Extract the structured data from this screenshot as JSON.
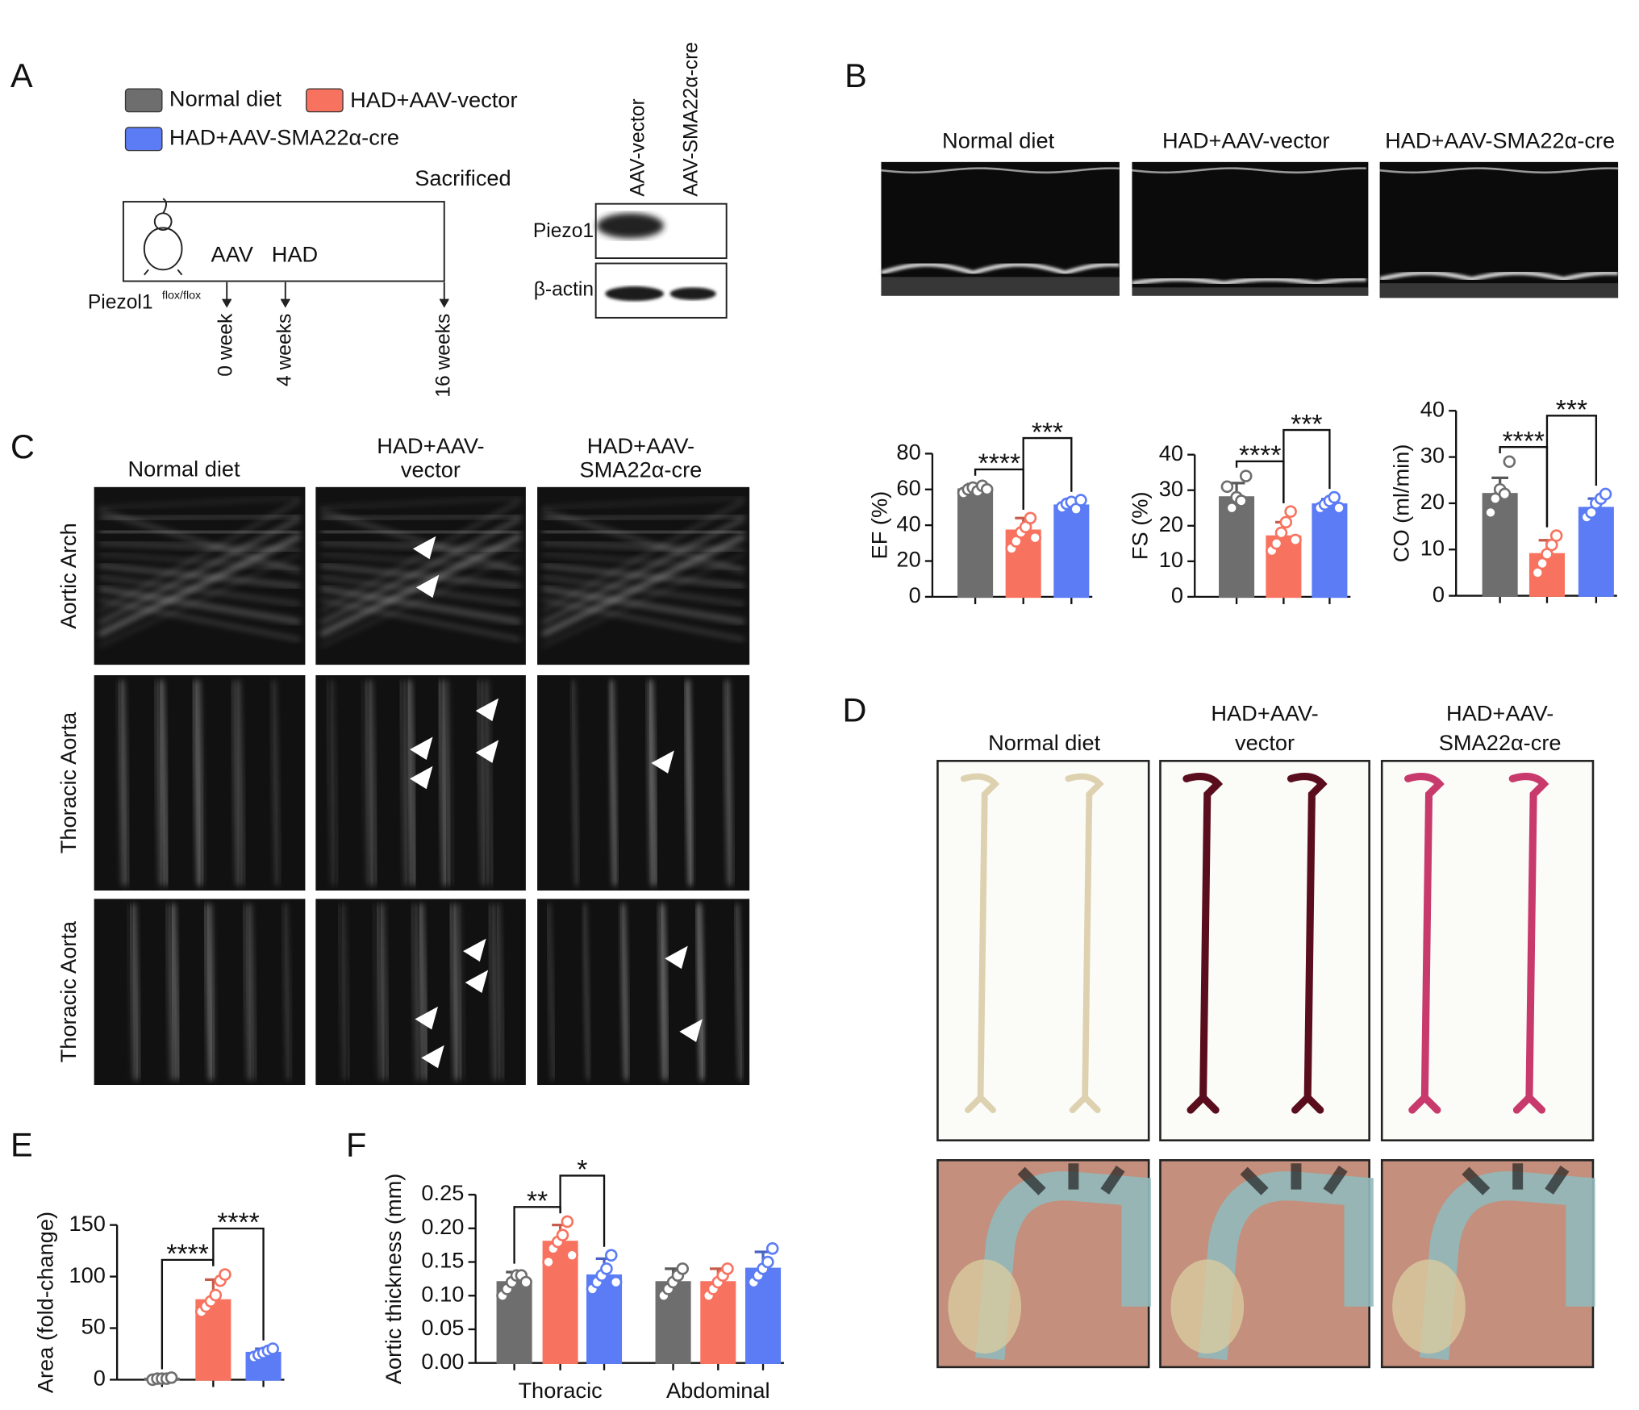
{
  "panel_labels": [
    "A",
    "B",
    "C",
    "D",
    "E",
    "F"
  ],
  "legend": {
    "names": [
      "Normal diet",
      "HAD+AAV-vector",
      "HAD+AAV-SMA22α-cre"
    ],
    "colors": [
      "#6e6e6e",
      "#f8735f",
      "#5b7cf5"
    ]
  },
  "timeline": {
    "mouse": "Piezol1",
    "mouse_superscript": "flox/flox",
    "events": [
      "AAV",
      "HAD"
    ],
    "end": "Sacrificed",
    "times": [
      "0 week",
      "4 weeks",
      "16 weeks"
    ]
  },
  "western_blot": {
    "lanes": [
      "AAV-vector",
      "AAV-SMA22α-cre"
    ],
    "proteins": [
      "Piezo1",
      "β-actin"
    ]
  },
  "echo_titles": [
    "Normal diet",
    "HAD+AAV-vector",
    "HAD+AAV-SMA22α-cre"
  ],
  "ultrasound": {
    "columns": [
      [
        "Normal diet"
      ],
      [
        "HAD+AAV-",
        "vector"
      ],
      [
        "HAD+AAV-",
        "SMA22α-cre"
      ]
    ],
    "rows": [
      "Aortic Arch",
      "Thoracic Aorta",
      "Thoracic Aorta"
    ]
  },
  "staining": {
    "columns": [
      [
        "Normal diet"
      ],
      [
        "HAD+AAV-",
        "vector"
      ],
      [
        "HAD+AAV-",
        "SMA22α-cre"
      ]
    ]
  },
  "chart_data": [
    {
      "type": "bar",
      "ylabel": "EF (%)",
      "ylim": [
        0,
        80
      ],
      "yticks": [
        0,
        20,
        40,
        60,
        80
      ],
      "annotations": [
        "****",
        "***"
      ],
      "series": [
        {
          "color": "#6e6e6e",
          "values": [
            60
          ],
          "errors": [
            3
          ],
          "points": [
            [
              58,
              60,
              61,
              59,
              62,
              60
            ]
          ]
        },
        {
          "color": "#f8735f",
          "values": [
            37
          ],
          "errors": [
            7
          ],
          "points": [
            [
              27,
              31,
              36,
              39,
              44,
              33
            ]
          ]
        },
        {
          "color": "#5b7cf5",
          "values": [
            51
          ],
          "errors": [
            3
          ],
          "points": [
            [
              50,
              52,
              53,
              49,
              54
            ]
          ]
        }
      ]
    },
    {
      "type": "bar",
      "ylabel": "FS (%)",
      "ylim": [
        0,
        40
      ],
      "yticks": [
        0,
        10,
        20,
        30,
        40
      ],
      "annotations": [
        "****",
        "***"
      ],
      "series": [
        {
          "color": "#6e6e6e",
          "values": [
            28
          ],
          "errors": [
            4
          ],
          "points": [
            [
              31,
              25,
              28,
              27,
              34
            ]
          ]
        },
        {
          "color": "#f8735f",
          "values": [
            17
          ],
          "errors": [
            4
          ],
          "points": [
            [
              13,
              15,
              18,
              21,
              24,
              16
            ]
          ]
        },
        {
          "color": "#5b7cf5",
          "values": [
            26
          ],
          "errors": [
            1.5
          ],
          "points": [
            [
              25,
              26,
              27,
              28,
              25
            ]
          ]
        }
      ]
    },
    {
      "type": "bar",
      "ylabel": "CO (ml/min)",
      "ylim": [
        0,
        40
      ],
      "yticks": [
        0,
        10,
        20,
        30,
        40
      ],
      "annotations": [
        "****",
        "***"
      ],
      "series": [
        {
          "color": "#6e6e6e",
          "values": [
            22
          ],
          "errors": [
            3.5
          ],
          "points": [
            [
              18,
              21,
              23,
              22,
              29
            ]
          ]
        },
        {
          "color": "#f8735f",
          "values": [
            9
          ],
          "errors": [
            3
          ],
          "points": [
            [
              5,
              7,
              9,
              11,
              13
            ]
          ]
        },
        {
          "color": "#5b7cf5",
          "values": [
            19
          ],
          "errors": [
            2
          ],
          "points": [
            [
              17,
              18,
              20,
              21,
              22
            ]
          ]
        }
      ]
    },
    {
      "type": "bar",
      "ylabel": "Area (fold-change)",
      "ylim": [
        0,
        150
      ],
      "yticks": [
        0,
        50,
        100,
        150
      ],
      "annotations": [
        "****",
        "****"
      ],
      "series": [
        {
          "color": "#6e6e6e",
          "values": [
            1
          ],
          "errors": [
            1
          ],
          "points": [
            [
              0,
              1,
              1,
              1,
              2
            ]
          ]
        },
        {
          "color": "#f8735f",
          "values": [
            77
          ],
          "errors": [
            20
          ],
          "points": [
            [
              66,
              71,
              76,
              82,
              96,
              102
            ]
          ]
        },
        {
          "color": "#5b7cf5",
          "values": [
            26
          ],
          "errors": [
            4
          ],
          "points": [
            [
              22,
              24,
              26,
              28,
              30
            ]
          ]
        }
      ]
    },
    {
      "type": "bar",
      "ylabel": "Aortic thickness (mm)",
      "ylim": [
        0,
        0.25
      ],
      "categories": [
        "Thoracic",
        "Abdominal"
      ],
      "yticks": [
        {
          "value": 0,
          "label": "0.00"
        },
        {
          "value": 0.05,
          "label": "0.05"
        },
        {
          "value": 0.1,
          "label": "0.10"
        },
        {
          "value": 0.15,
          "label": "0.15"
        },
        {
          "value": 0.2,
          "label": "0.20"
        },
        {
          "value": 0.25,
          "label": "0.25"
        }
      ],
      "annotations": [
        "**",
        "*"
      ],
      "series": [
        {
          "color": "#6e6e6e",
          "values": [
            0.12,
            0.12
          ],
          "errors": [
            0.015,
            0.02
          ],
          "points": [
            [
              0.1,
              0.11,
              0.12,
              0.13,
              0.13,
              0.12
            ],
            [
              0.1,
              0.11,
              0.12,
              0.13,
              0.14
            ]
          ]
        },
        {
          "color": "#f8735f",
          "values": [
            0.18,
            0.12
          ],
          "errors": [
            0.025,
            0.02
          ],
          "points": [
            [
              0.15,
              0.17,
              0.18,
              0.19,
              0.21,
              0.16
            ],
            [
              0.1,
              0.11,
              0.12,
              0.13,
              0.14
            ]
          ]
        },
        {
          "color": "#5b7cf5",
          "values": [
            0.13,
            0.14
          ],
          "errors": [
            0.025,
            0.025
          ],
          "points": [
            [
              0.11,
              0.12,
              0.13,
              0.14,
              0.16,
              0.12
            ],
            [
              0.12,
              0.13,
              0.14,
              0.15,
              0.17
            ]
          ]
        }
      ]
    }
  ]
}
